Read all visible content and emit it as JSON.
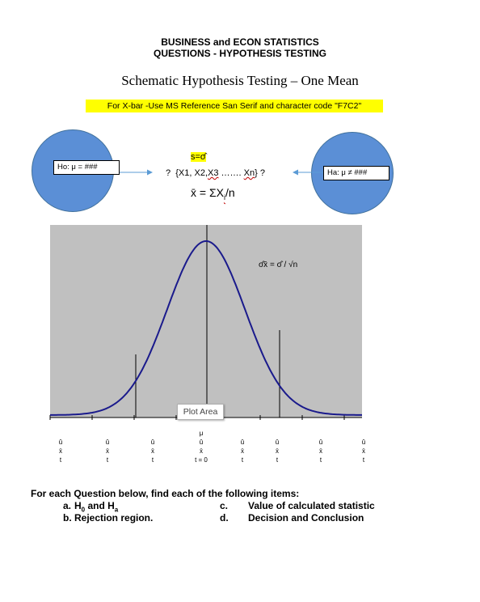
{
  "header": {
    "line1": "BUSINESS and ECON STATISTICS",
    "line2": "QUESTIONS - HYPOTHESIS TESTING"
  },
  "title": "Schematic Hypothesis Testing – One Mean",
  "note": "For X-bar -Use MS Reference San Serif and character code \"F7C2\"",
  "null_hypothesis": "Ho: μ = ###",
  "alt_hypothesis": "Ha: μ ≠ ###",
  "sample": {
    "s_label": "s=σ̂",
    "q1": "?",
    "data_open": "{X1, X2,",
    "x3": "X3",
    "dots": " ……. ",
    "xn": "Xn",
    "data_close": "} ?",
    "mean_lhs": "x̄  = ΣX",
    "mean_sub": "i",
    "mean_rhs": "/n"
  },
  "plot": {
    "annotation": "σ̂x̄ = σ̂ / √n",
    "tooltip": "Plot Area",
    "colors": {
      "background": "#c0c0c0",
      "curve": "#1a1a8c"
    }
  },
  "chart_data": {
    "type": "line",
    "curve": "normal density",
    "x": [
      -4.0,
      -3.5,
      -3.0,
      -2.5,
      -2.0,
      -1.5,
      -1.0,
      -0.5,
      0.0,
      0.5,
      1.0,
      1.5,
      2.0,
      2.5,
      3.0,
      3.5,
      4.0
    ],
    "y": [
      0.0001,
      0.0009,
      0.0044,
      0.0175,
      0.054,
      0.1295,
      0.242,
      0.3521,
      0.3989,
      0.3521,
      0.242,
      0.1295,
      0.054,
      0.0175,
      0.0044,
      0.0009,
      0.0001
    ],
    "xlim": [
      -4,
      4
    ],
    "ylim": [
      0,
      0.43
    ],
    "vlines": [
      -2,
      0,
      2
    ],
    "grid": false
  },
  "axis_columns": [
    {
      "mu": "",
      "hat": "û",
      "xbar": "x̄",
      "t": "t"
    },
    {
      "mu": "",
      "hat": "û",
      "xbar": "x̄",
      "t": "t"
    },
    {
      "mu": "",
      "hat": "û",
      "xbar": "x̄",
      "t": "t"
    },
    {
      "mu": "μ",
      "hat": "û",
      "xbar": "x̄",
      "t": "t = 0"
    },
    {
      "mu": "",
      "hat": "û",
      "xbar": "x̄",
      "t": "t"
    },
    {
      "mu": "",
      "hat": "û",
      "xbar": "x̄",
      "t": "t"
    },
    {
      "mu": "",
      "hat": "û",
      "xbar": "x̄",
      "t": "t"
    },
    {
      "mu": "",
      "hat": "û",
      "xbar": "x̄",
      "t": "t"
    }
  ],
  "questions": {
    "intro": "For each Question below, find each of the following items:",
    "a_label": "a.",
    "a_text_pre": "H",
    "a_sub0": "0",
    "a_text_mid": " and H",
    "a_suba": "a",
    "b_label": "b.",
    "b_text": "Rejection region.",
    "c_label": "c.",
    "c_text": "Value of calculated statistic",
    "d_label": "d.",
    "d_text": "Decision and Conclusion"
  }
}
